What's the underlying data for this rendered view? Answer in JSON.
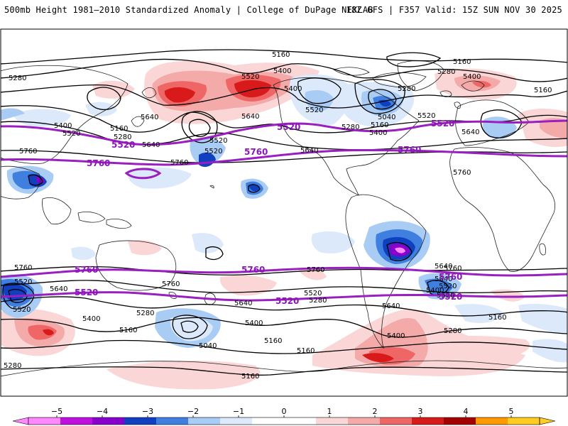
{
  "header": {
    "left": "500mb Height 1981–2010 Standardized Anomaly | College of DuPage NEXLAB",
    "right": "18Z GFS | F357 Valid: 15Z SUN NOV 30 2025"
  },
  "colorbar": {
    "ticks": [
      "−5",
      "−4",
      "−3",
      "−2",
      "−1",
      "0",
      "1",
      "2",
      "3",
      "4",
      "5"
    ],
    "colors": [
      "#ff88ff",
      "#c010e0",
      "#8800cc",
      "#1040c0",
      "#3f7fe0",
      "#a9ccf5",
      "#dce9fb",
      "#ffffff",
      "#ffffff",
      "#fbd6d6",
      "#f5aaaa",
      "#ee6666",
      "#d91a1a",
      "#a30000",
      "#ff9900",
      "#ffcc22"
    ]
  },
  "contour_labels": {
    "black": [
      "5160",
      "5280",
      "5400",
      "5520",
      "5640",
      "5160",
      "5280",
      "5400",
      "5520",
      "5160",
      "5280",
      "5400",
      "5520",
      "5640",
      "5040",
      "5160",
      "5280",
      "5400",
      "5520",
      "5640",
      "5520",
      "5640",
      "5160",
      "5280",
      "5400",
      "5520",
      "5640",
      "5760",
      "5760",
      "5760",
      "5760",
      "5640",
      "5760",
      "5520",
      "5640",
      "5520",
      "5760",
      "5520",
      "5640",
      "5520",
      "5400",
      "5280",
      "5280",
      "5160",
      "5040",
      "5400",
      "5160",
      "5160",
      "5280",
      "5640",
      "5400",
      "5160",
      "5280",
      "5400",
      "5160",
      "5520",
      "5640",
      "5760"
    ],
    "purple": [
      "5520",
      "5760",
      "5520",
      "5760",
      "5520",
      "5520",
      "5760",
      "5760",
      "5760",
      "5520",
      "5520",
      "5520",
      "5760"
    ]
  }
}
